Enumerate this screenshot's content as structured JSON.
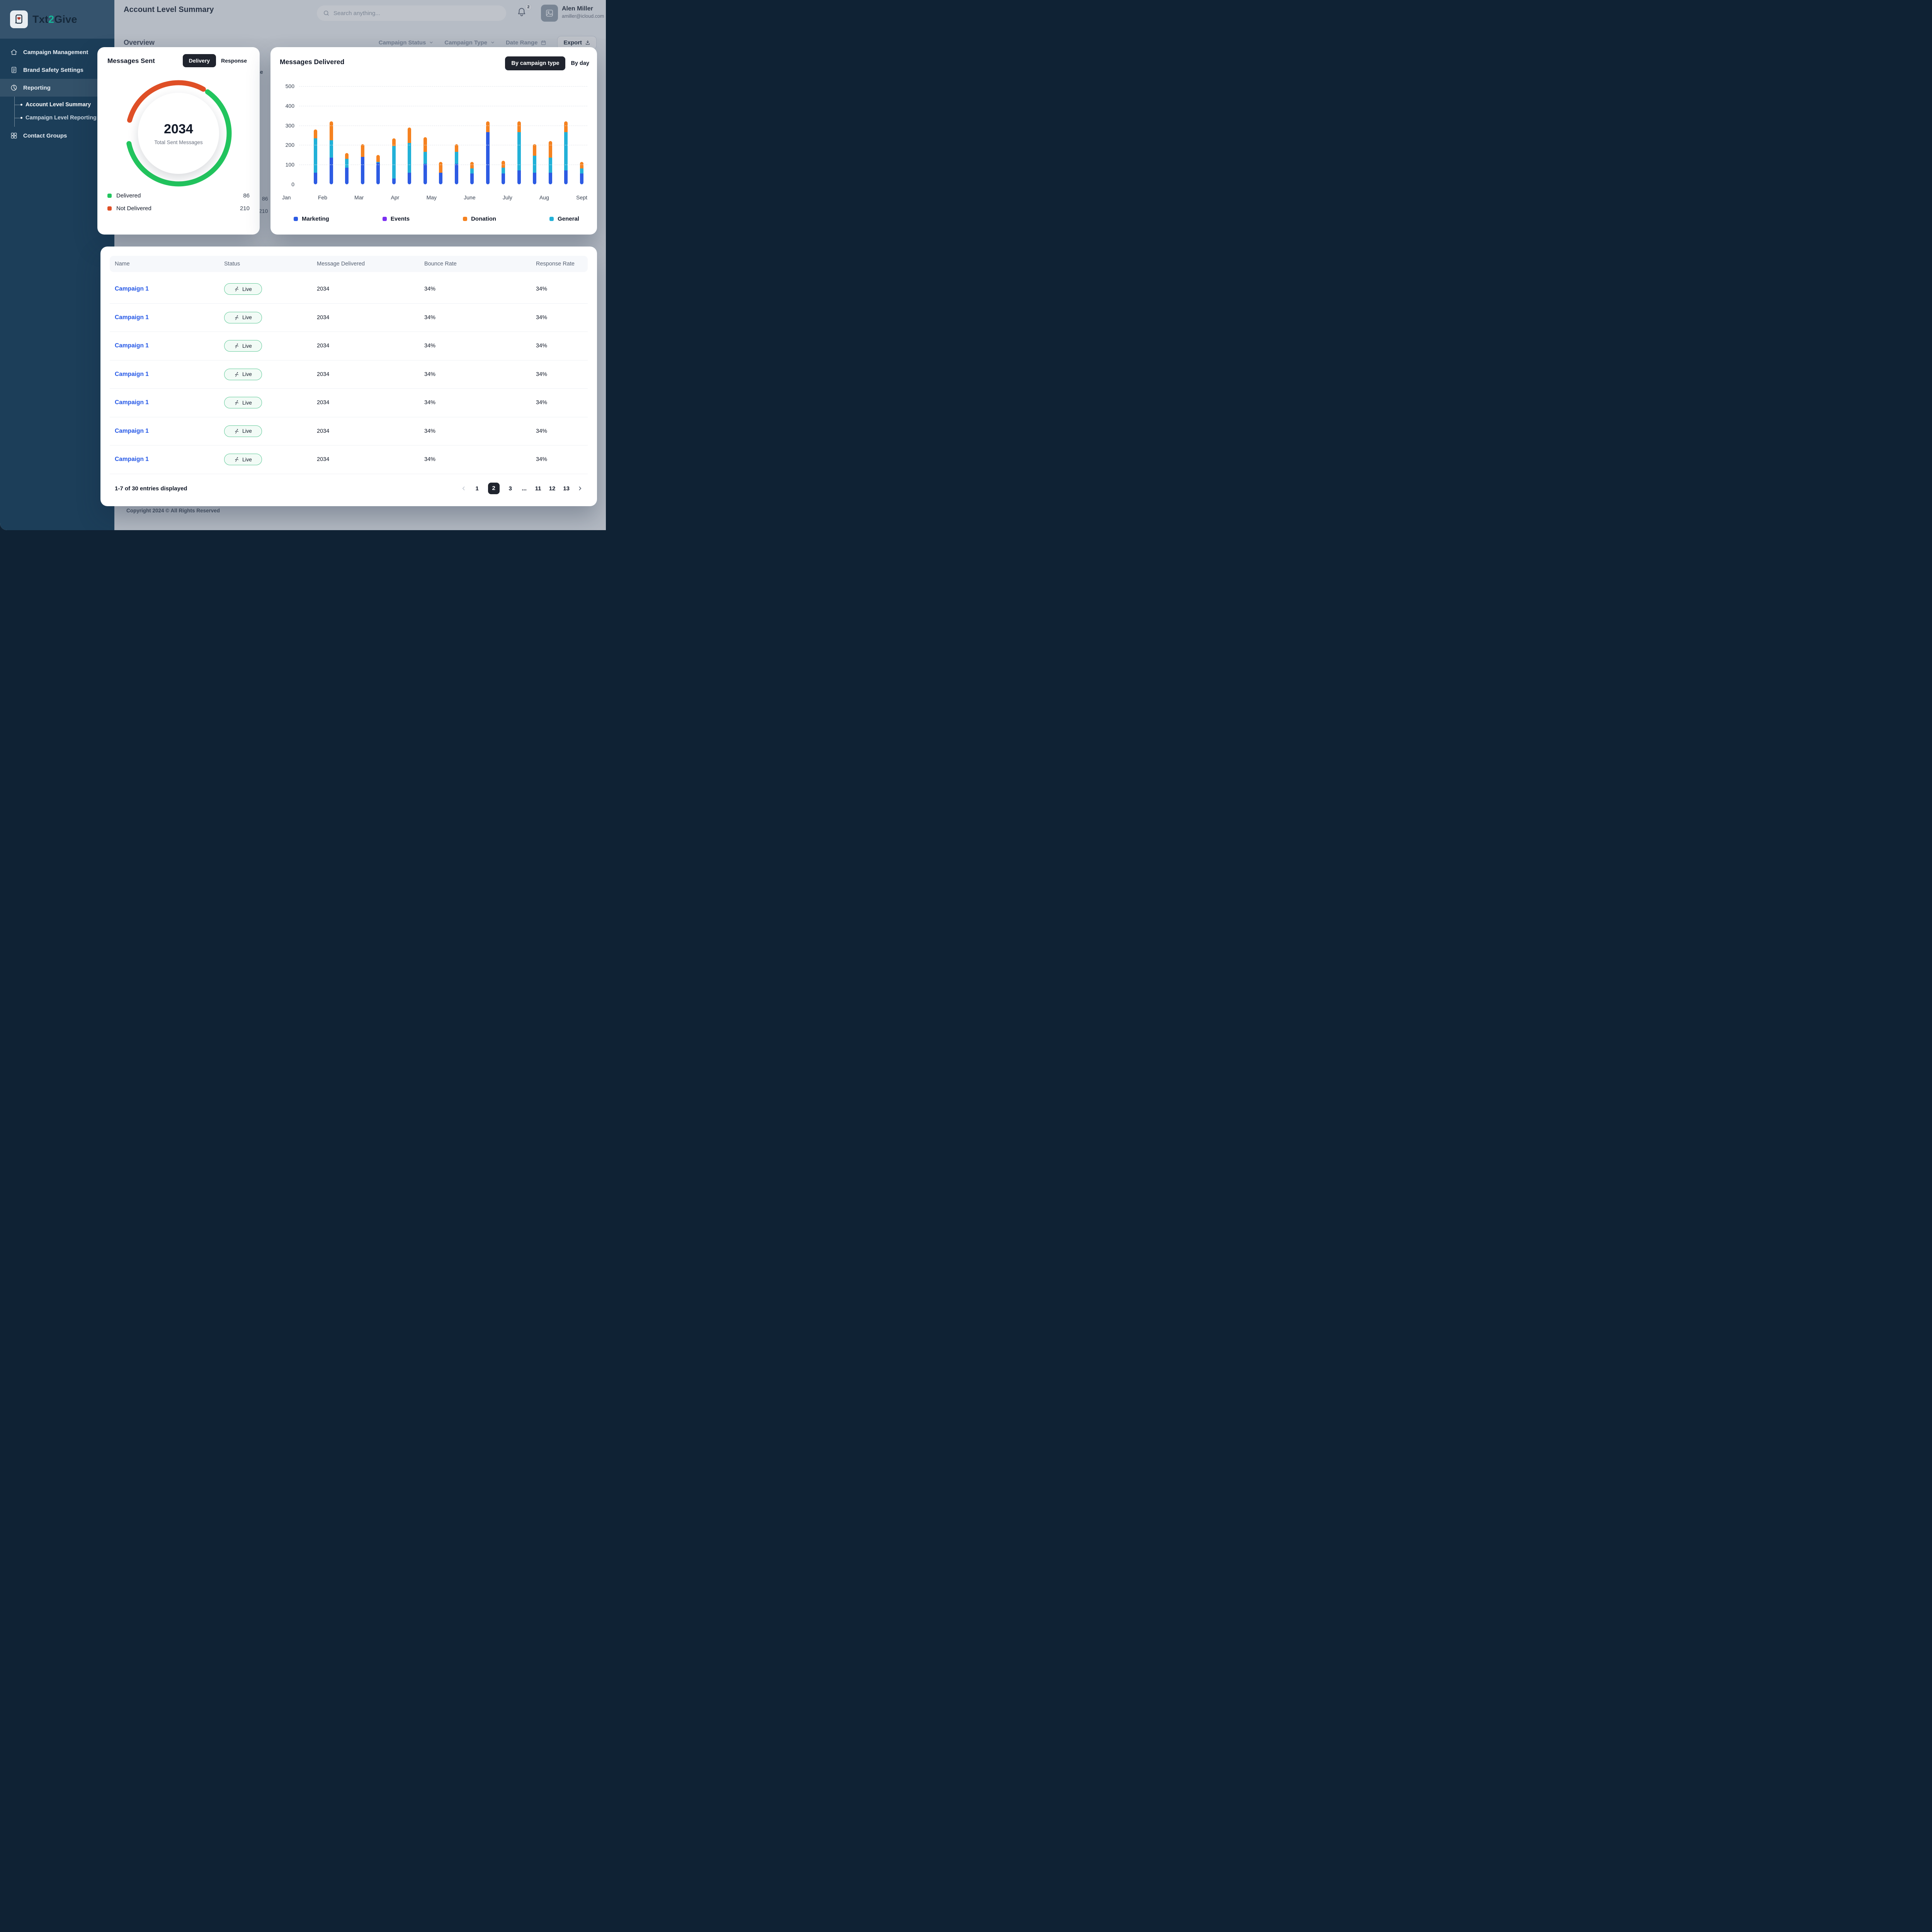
{
  "brand": {
    "prefix": "Txt",
    "accent": "2",
    "suffix": "Give"
  },
  "sidebar": {
    "items": [
      {
        "label": "Campaign Management"
      },
      {
        "label": "Brand Safety Settings"
      },
      {
        "label": "Reporting"
      },
      {
        "label": "Account Level Summary"
      },
      {
        "label": "Campaign Level Reporting"
      },
      {
        "label": "Contact Groups"
      }
    ]
  },
  "header": {
    "title": "Account Level Summary",
    "search_placeholder": "Search anything...",
    "notification_count": "2",
    "user_name": "Alen Miller",
    "user_email": "amiller@icloud.com"
  },
  "toolbar": {
    "section_title": "Overview",
    "filters": [
      {
        "label": "Campaign Status"
      },
      {
        "label": "Campaign Type"
      },
      {
        "label": "Date Range"
      }
    ],
    "export_label": "Export"
  },
  "messages_sent": {
    "title": "Messages Sent",
    "tab_delivery": "Delivery",
    "tab_response": "Response",
    "center_value": "2034",
    "center_label": "Total Sent Messages",
    "legend": [
      {
        "label": "Delivered",
        "value": "86",
        "color": "#22c55e"
      },
      {
        "label": "Not Delivered",
        "value": "210",
        "color": "#df4f26"
      }
    ]
  },
  "messages_delivered": {
    "title": "Messages Delivered",
    "tab_by_type": "By campaign type",
    "tab_by_day": "By day"
  },
  "chart_data": [
    {
      "type": "donut",
      "title": "Messages Sent",
      "center_value": 2034,
      "center_label": "Total Sent Messages",
      "segments": [
        {
          "label": "Delivered",
          "value": 86,
          "color": "#22c55e",
          "arc_fraction": 0.62,
          "start_deg": 35
        },
        {
          "label": "Not Delivered",
          "value": 210,
          "color": "#df4f26",
          "arc_fraction": 0.29,
          "start_deg": 285
        }
      ]
    },
    {
      "type": "bar",
      "stacked": true,
      "title": "Messages Delivered",
      "ylim": [
        0,
        500
      ],
      "y_ticks": [
        0,
        100,
        200,
        300,
        400,
        500
      ],
      "months": [
        "Jan",
        "Feb",
        "Mar",
        "Apr",
        "May",
        "June",
        "July",
        "Aug",
        "Sept"
      ],
      "legend": [
        {
          "name": "Marketing",
          "key": "marketing",
          "color": "#2d5be3"
        },
        {
          "name": "Events",
          "key": "events",
          "color": "#7b2ff2"
        },
        {
          "name": "Donation",
          "key": "donation",
          "color": "#f58220"
        },
        {
          "name": "General",
          "key": "general",
          "color": "#22b1d8"
        }
      ],
      "bars": [
        {
          "marketing": 60,
          "events": 0,
          "general": 175,
          "donation": 45
        },
        {
          "marketing": 135,
          "events": 0,
          "general": 90,
          "donation": 95
        },
        {
          "marketing": 85,
          "events": 0,
          "general": 45,
          "donation": 30
        },
        {
          "marketing": 140,
          "events": 0,
          "general": 0,
          "donation": 65
        },
        {
          "marketing": 110,
          "events": 0,
          "general": 5,
          "donation": 35
        },
        {
          "marketing": 30,
          "events": 0,
          "general": 165,
          "donation": 40
        },
        {
          "marketing": 60,
          "events": 0,
          "general": 150,
          "donation": 80
        },
        {
          "marketing": 105,
          "events": 0,
          "general": 60,
          "donation": 75
        },
        {
          "marketing": 60,
          "events": 0,
          "general": 0,
          "donation": 55
        },
        {
          "marketing": 105,
          "events": 0,
          "general": 60,
          "donation": 40
        },
        {
          "marketing": 55,
          "events": 0,
          "general": 25,
          "donation": 35
        },
        {
          "marketing": 265,
          "events": 0,
          "general": 0,
          "donation": 55
        },
        {
          "marketing": 55,
          "events": 0,
          "general": 30,
          "donation": 35
        },
        {
          "marketing": 70,
          "events": 0,
          "general": 195,
          "donation": 55
        },
        {
          "marketing": 60,
          "events": 0,
          "general": 85,
          "donation": 60
        },
        {
          "marketing": 60,
          "events": 0,
          "general": 75,
          "donation": 85
        },
        {
          "marketing": 70,
          "events": 0,
          "general": 195,
          "donation": 55
        },
        {
          "marketing": 55,
          "events": 0,
          "general": 25,
          "donation": 35
        }
      ]
    }
  ],
  "table": {
    "columns": [
      "Name",
      "Status",
      "Message Delivered",
      "Bounce Rate",
      "Response Rate"
    ],
    "rows": [
      {
        "name": "Campaign 1",
        "status": "Live",
        "message_delivered": "2034",
        "bounce_rate": "34%",
        "response_rate": "34%"
      },
      {
        "name": "Campaign 1",
        "status": "Live",
        "message_delivered": "2034",
        "bounce_rate": "34%",
        "response_rate": "34%"
      },
      {
        "name": "Campaign 1",
        "status": "Live",
        "message_delivered": "2034",
        "bounce_rate": "34%",
        "response_rate": "34%"
      },
      {
        "name": "Campaign 1",
        "status": "Live",
        "message_delivered": "2034",
        "bounce_rate": "34%",
        "response_rate": "34%"
      },
      {
        "name": "Campaign 1",
        "status": "Live",
        "message_delivered": "2034",
        "bounce_rate": "34%",
        "response_rate": "34%"
      },
      {
        "name": "Campaign 1",
        "status": "Live",
        "message_delivered": "2034",
        "bounce_rate": "34%",
        "response_rate": "34%"
      },
      {
        "name": "Campaign 1",
        "status": "Live",
        "message_delivered": "2034",
        "bounce_rate": "34%",
        "response_rate": "34%"
      }
    ],
    "footer_text": "1-7 of 30 entries displayed",
    "pages": [
      "1",
      "2",
      "3",
      "...",
      "11",
      "12",
      "13"
    ],
    "active_page": "2"
  },
  "background": {
    "peek_text": "onse",
    "peek_value_1": "86",
    "peek_value_2": "210",
    "copyright": "Copyright 2024 © All Rights Reserved"
  }
}
